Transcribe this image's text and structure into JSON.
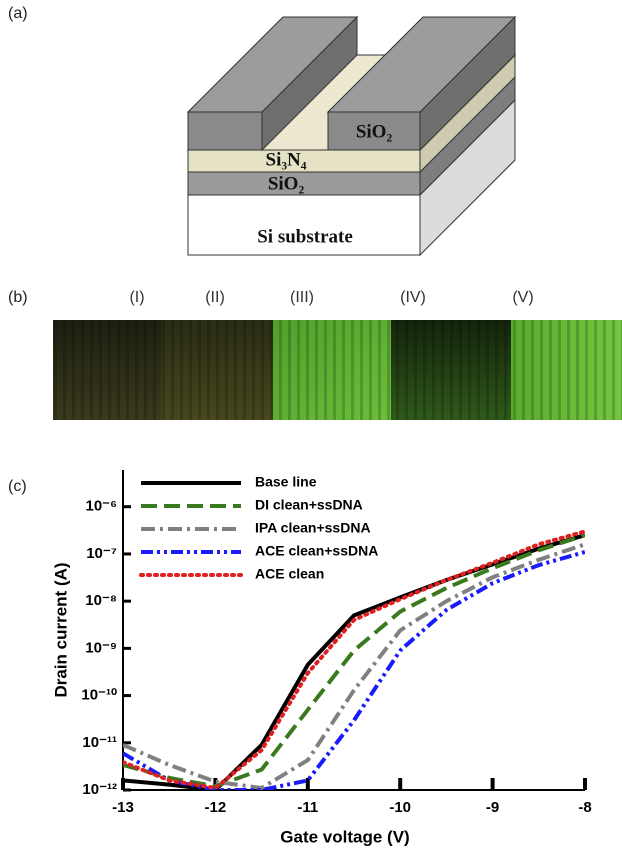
{
  "panels": [
    "(a)",
    "(b)",
    "(c)"
  ],
  "diagram": {
    "labels": [
      "SiO₂",
      "Si₃N₄",
      "SiO₂",
      "Si substrate"
    ]
  },
  "images": {
    "labels": [
      "(I)",
      "(II)",
      "(III)",
      "(IV)",
      "(V)"
    ]
  },
  "chart_data": {
    "type": "line",
    "x_label": "Gate voltage (V)",
    "y_label": "Drain current (A)",
    "x": [
      -13,
      -12.5,
      -12,
      -11.5,
      -11,
      -10.5,
      -10,
      -9.5,
      -9,
      -8.5,
      -8
    ],
    "xlim": [
      -13,
      -8
    ],
    "xticks": [
      -13,
      -12,
      -11,
      -10,
      -9,
      -8
    ],
    "ylim": [
      1e-12,
      6e-06
    ],
    "log_y": true,
    "yticks": [
      {
        "value": 1e-12,
        "label": "10⁻¹²"
      },
      {
        "value": 1e-11,
        "label": "10⁻¹¹"
      },
      {
        "value": 1e-10,
        "label": "10⁻¹⁰"
      },
      {
        "value": 1e-09,
        "label": "10⁻⁹"
      },
      {
        "value": 1e-08,
        "label": "10⁻⁸"
      },
      {
        "value": 1e-07,
        "label": "10⁻⁷"
      },
      {
        "value": 1e-06,
        "label": "10⁻⁶"
      }
    ],
    "legend": "upper left",
    "series": [
      {
        "name": "Base line",
        "color": "#000000",
        "style": "solid",
        "values": [
          1.6e-12,
          1.3e-12,
          1e-12,
          9e-12,
          4.5e-10,
          5e-09,
          1.2e-08,
          2.8e-08,
          6e-08,
          1.3e-07,
          2.5e-07
        ]
      },
      {
        "name": "DI clean+ssDNA",
        "color": "#3a7a1e",
        "style": "dashed",
        "values": [
          3.4e-12,
          1.8e-12,
          1.2e-12,
          2.7e-12,
          5e-11,
          9e-10,
          6e-09,
          1.9e-08,
          5e-08,
          1.2e-07,
          2.5e-07
        ]
      },
      {
        "name": "IPA clean+ssDNA",
        "color": "#808080",
        "style": "dashdot",
        "values": [
          9e-12,
          3.4e-12,
          1.5e-12,
          1.1e-12,
          4.3e-12,
          1.3e-10,
          2.4e-09,
          1e-08,
          3.2e-08,
          7.5e-08,
          1.6e-07
        ]
      },
      {
        "name": "ACE clean+ssDNA",
        "color": "#1a1aff",
        "style": "dashdotdot",
        "values": [
          6e-12,
          1.6e-12,
          1e-12,
          1e-12,
          1.6e-12,
          3e-11,
          9e-10,
          6.5e-09,
          2.4e-08,
          5.8e-08,
          1.1e-07
        ]
      },
      {
        "name": "ACE clean",
        "color": "#e02020",
        "style": "dotted",
        "values": [
          3.9e-12,
          1.6e-12,
          1.1e-12,
          7e-12,
          3e-10,
          4e-09,
          1.1e-08,
          2.8e-08,
          6.5e-08,
          1.6e-07,
          3e-07
        ]
      }
    ]
  }
}
